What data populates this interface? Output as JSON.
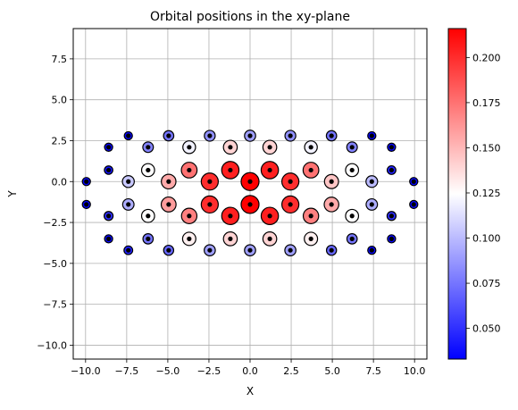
{
  "chart_data": {
    "type": "scatter",
    "title": "Orbital positions in the xy-plane",
    "xlabel": "X",
    "ylabel": "Y",
    "xlim": [
      -10.75,
      10.75
    ],
    "ylim": [
      -10.85,
      9.35
    ],
    "xticks": [
      -10.0,
      -7.5,
      -5.0,
      -2.5,
      0.0,
      2.5,
      5.0,
      7.5,
      10.0
    ],
    "xtick_labels": [
      "−10.0",
      "−7.5",
      "−5.0",
      "−2.5",
      "0.0",
      "2.5",
      "5.0",
      "7.5",
      "10.0"
    ],
    "yticks": [
      -10.0,
      -7.5,
      -5.0,
      -2.5,
      0.0,
      2.5,
      5.0,
      7.5
    ],
    "ytick_labels": [
      "−10.0",
      "−7.5",
      "−5.0",
      "−2.5",
      "0.0",
      "2.5",
      "5.0",
      "7.5"
    ],
    "grid": true,
    "colormap": "bwr",
    "colorbar": {
      "vmin": 0.033,
      "vmax": 0.216,
      "ticks": [
        0.05,
        0.075,
        0.1,
        0.125,
        0.15,
        0.175,
        0.2
      ],
      "tick_labels": [
        "0.050",
        "0.075",
        "0.100",
        "0.125",
        "0.150",
        "0.175",
        "0.200"
      ]
    },
    "points": [
      {
        "x": -9.95,
        "y": 0.0,
        "value": 0.035
      },
      {
        "x": -9.95,
        "y": -1.4,
        "value": 0.035
      },
      {
        "x": 9.95,
        "y": 0.0,
        "value": 0.035
      },
      {
        "x": 9.95,
        "y": -1.4,
        "value": 0.035
      },
      {
        "x": -8.6,
        "y": 2.1,
        "value": 0.035
      },
      {
        "x": -8.6,
        "y": 0.7,
        "value": 0.04
      },
      {
        "x": -8.6,
        "y": -2.1,
        "value": 0.05
      },
      {
        "x": -8.6,
        "y": -3.5,
        "value": 0.035
      },
      {
        "x": 8.6,
        "y": 2.1,
        "value": 0.035
      },
      {
        "x": 8.6,
        "y": 0.7,
        "value": 0.045
      },
      {
        "x": 8.6,
        "y": -2.1,
        "value": 0.05
      },
      {
        "x": 8.6,
        "y": -3.5,
        "value": 0.035
      },
      {
        "x": -7.4,
        "y": 2.8,
        "value": 0.035
      },
      {
        "x": -7.4,
        "y": 0.0,
        "value": 0.105
      },
      {
        "x": -7.4,
        "y": -1.4,
        "value": 0.095
      },
      {
        "x": -7.4,
        "y": -4.2,
        "value": 0.045
      },
      {
        "x": 7.4,
        "y": 2.8,
        "value": 0.035
      },
      {
        "x": 7.4,
        "y": 0.0,
        "value": 0.1
      },
      {
        "x": 7.4,
        "y": -1.4,
        "value": 0.095
      },
      {
        "x": 7.4,
        "y": -4.2,
        "value": 0.035
      },
      {
        "x": -6.2,
        "y": 2.1,
        "value": 0.08
      },
      {
        "x": -6.2,
        "y": 0.7,
        "value": 0.125
      },
      {
        "x": -6.2,
        "y": -2.1,
        "value": 0.125
      },
      {
        "x": -6.2,
        "y": -3.5,
        "value": 0.075
      },
      {
        "x": 6.2,
        "y": 2.1,
        "value": 0.08
      },
      {
        "x": 6.2,
        "y": 0.7,
        "value": 0.125
      },
      {
        "x": 6.2,
        "y": -2.1,
        "value": 0.125
      },
      {
        "x": 6.2,
        "y": -3.5,
        "value": 0.075
      },
      {
        "x": -4.95,
        "y": 2.8,
        "value": 0.075
      },
      {
        "x": -4.95,
        "y": 0.0,
        "value": 0.155
      },
      {
        "x": -4.95,
        "y": -1.4,
        "value": 0.16
      },
      {
        "x": -4.95,
        "y": -4.2,
        "value": 0.07
      },
      {
        "x": 4.95,
        "y": 2.8,
        "value": 0.075
      },
      {
        "x": 4.95,
        "y": 0.0,
        "value": 0.145
      },
      {
        "x": 4.95,
        "y": -1.4,
        "value": 0.155
      },
      {
        "x": 4.95,
        "y": -4.2,
        "value": 0.07
      },
      {
        "x": -3.7,
        "y": 2.1,
        "value": 0.12
      },
      {
        "x": -3.7,
        "y": 0.7,
        "value": 0.175
      },
      {
        "x": -3.7,
        "y": -2.1,
        "value": 0.17
      },
      {
        "x": -3.7,
        "y": -3.5,
        "value": 0.13
      },
      {
        "x": 3.7,
        "y": 2.1,
        "value": 0.12
      },
      {
        "x": 3.7,
        "y": 0.7,
        "value": 0.175
      },
      {
        "x": 3.7,
        "y": -2.1,
        "value": 0.17
      },
      {
        "x": 3.7,
        "y": -3.5,
        "value": 0.13
      },
      {
        "x": -2.45,
        "y": 2.8,
        "value": 0.085
      },
      {
        "x": -2.45,
        "y": 0.0,
        "value": 0.2
      },
      {
        "x": -2.45,
        "y": -1.4,
        "value": 0.2
      },
      {
        "x": -2.45,
        "y": -4.2,
        "value": 0.09
      },
      {
        "x": 2.45,
        "y": 2.8,
        "value": 0.085
      },
      {
        "x": 2.45,
        "y": 0.0,
        "value": 0.2
      },
      {
        "x": 2.45,
        "y": -1.4,
        "value": 0.2
      },
      {
        "x": 2.45,
        "y": -4.2,
        "value": 0.09
      },
      {
        "x": -1.2,
        "y": 2.1,
        "value": 0.14
      },
      {
        "x": -1.2,
        "y": 0.7,
        "value": 0.205
      },
      {
        "x": -1.2,
        "y": -2.1,
        "value": 0.205
      },
      {
        "x": -1.2,
        "y": -3.5,
        "value": 0.14
      },
      {
        "x": 1.2,
        "y": 2.1,
        "value": 0.14
      },
      {
        "x": 1.2,
        "y": 0.7,
        "value": 0.205
      },
      {
        "x": 1.2,
        "y": -2.1,
        "value": 0.205
      },
      {
        "x": 1.2,
        "y": -3.5,
        "value": 0.14
      },
      {
        "x": 0.0,
        "y": 2.8,
        "value": 0.09
      },
      {
        "x": 0.0,
        "y": 0.0,
        "value": 0.216
      },
      {
        "x": 0.0,
        "y": -1.4,
        "value": 0.216
      },
      {
        "x": 0.0,
        "y": -4.2,
        "value": 0.09
      }
    ]
  }
}
